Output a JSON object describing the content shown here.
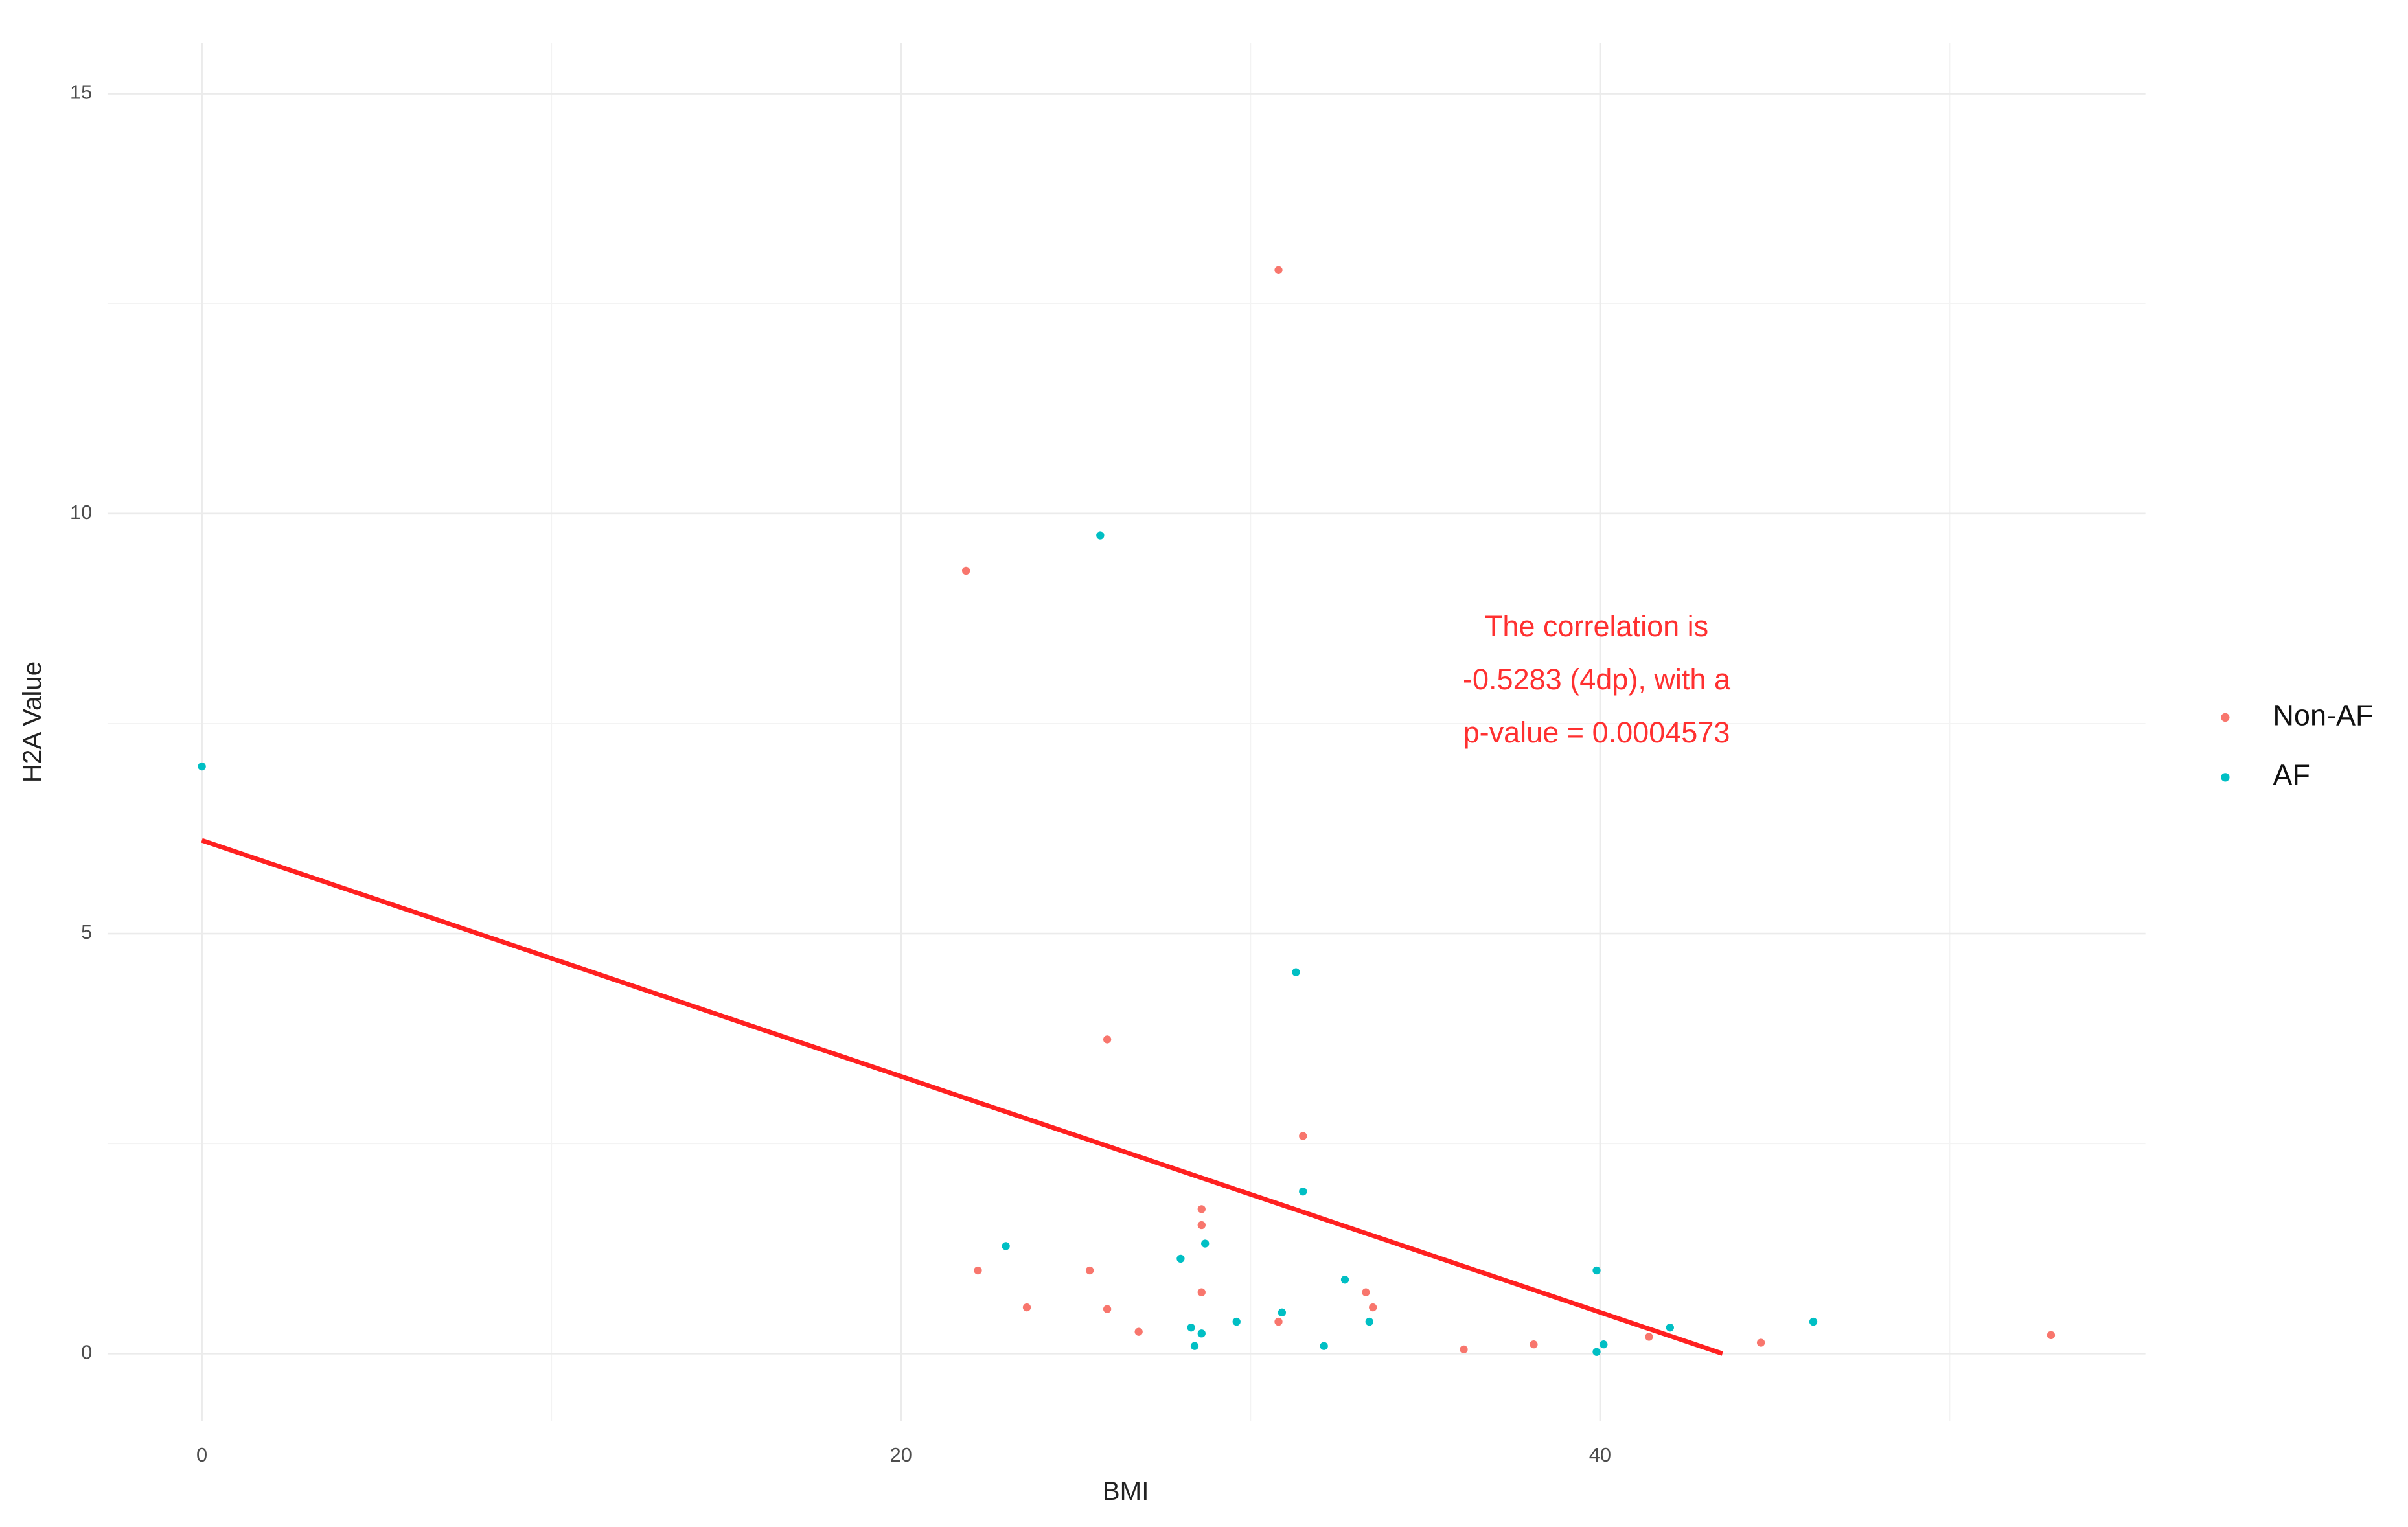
{
  "chart_data": {
    "type": "scatter",
    "x_label": "BMI",
    "y_label": "H2A Value",
    "xlim": [
      -2.7,
      55.6
    ],
    "ylim": [
      -0.8,
      15.6
    ],
    "xticks": [
      0,
      20,
      40
    ],
    "yticks": [
      0,
      5,
      10,
      15
    ],
    "x_minor_grid": [
      10,
      30,
      50
    ],
    "y_minor_grid": [
      2.5,
      7.5,
      12.5
    ],
    "grid": true,
    "legend_position": "right",
    "series": [
      {
        "name": "Non-AF",
        "color": "#F8766D",
        "x": [
          21.86,
          30.8,
          25.9,
          31.5,
          28.6,
          28.6,
          22.2,
          25.4,
          23.6,
          25.9,
          26.8,
          28.6,
          30.8,
          33.3,
          33.5,
          36.1,
          38.1,
          41.4,
          44.6,
          52.9
        ],
        "values": [
          9.32,
          12.9,
          3.74,
          2.59,
          1.72,
          1.53,
          0.99,
          0.99,
          0.55,
          0.53,
          0.26,
          0.73,
          0.38,
          0.73,
          0.55,
          0.05,
          0.11,
          0.2,
          0.13,
          0.22
        ]
      },
      {
        "name": "AF",
        "color": "#00BFC4",
        "x": [
          0,
          25.7,
          31.3,
          31.5,
          23.0,
          28.0,
          28.7,
          28.3,
          28.4,
          28.6,
          29.6,
          30.9,
          32.1,
          32.7,
          33.4,
          39.9,
          42.0,
          46.1,
          39.9,
          40.1
        ],
        "values": [
          6.99,
          9.74,
          4.54,
          1.93,
          1.28,
          1.13,
          1.31,
          0.31,
          0.09,
          0.24,
          0.38,
          0.49,
          0.09,
          0.88,
          0.38,
          0.99,
          0.31,
          0.38,
          0.02,
          0.11
        ]
      }
    ],
    "trend_line": {
      "x": [
        0,
        43.5
      ],
      "y": [
        6.11,
        0
      ],
      "color": "#FF2020"
    },
    "annotation": {
      "lines": [
        "The correlation is",
        "-0.5283 (4dp), with a",
        "p-value = 0.0004573"
      ],
      "x": 39.9,
      "y": 8.0,
      "color": "#FF3030"
    }
  }
}
